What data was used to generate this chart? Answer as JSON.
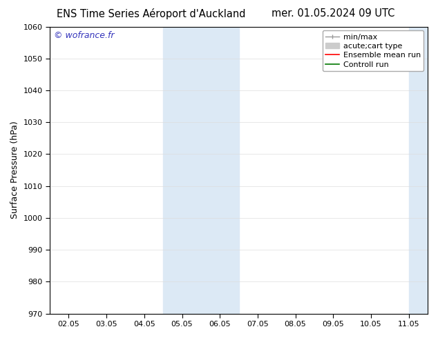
{
  "title_left": "ENS Time Series Aéroport d'Auckland",
  "title_right": "mer. 01.05.2024 09 UTC",
  "ylabel": "Surface Pressure (hPa)",
  "ylim": [
    970,
    1060
  ],
  "yticks": [
    970,
    980,
    990,
    1000,
    1010,
    1020,
    1030,
    1040,
    1050,
    1060
  ],
  "xtick_labels": [
    "02.05",
    "03.05",
    "04.05",
    "05.05",
    "06.05",
    "07.05",
    "08.05",
    "09.05",
    "10.05",
    "11.05"
  ],
  "xtick_positions": [
    0,
    1,
    2,
    3,
    4,
    5,
    6,
    7,
    8,
    9
  ],
  "xlim": [
    -0.5,
    9.5
  ],
  "shaded_region1_xmin": 2.5,
  "shaded_region1_xmax": 4.5,
  "shaded_region2_xmin": 9.0,
  "shaded_region2_xmax": 9.5,
  "shaded_color": "#dce9f5",
  "watermark": "© wofrance.fr",
  "watermark_color": "#3333bb",
  "background_color": "#ffffff",
  "grid_color": "#dddddd",
  "legend_items": [
    {
      "label": "min/max",
      "type": "line",
      "color": "#999999",
      "lw": 1.0
    },
    {
      "label": "acute;cart type",
      "type": "patch",
      "color": "#cccccc"
    },
    {
      "label": "Ensemble mean run",
      "type": "line",
      "color": "#ff0000",
      "lw": 1.2
    },
    {
      "label": "Controll run",
      "type": "line",
      "color": "#007700",
      "lw": 1.2
    }
  ],
  "title_fontsize": 10.5,
  "ylabel_fontsize": 9,
  "tick_fontsize": 8,
  "watermark_fontsize": 9,
  "legend_fontsize": 8
}
